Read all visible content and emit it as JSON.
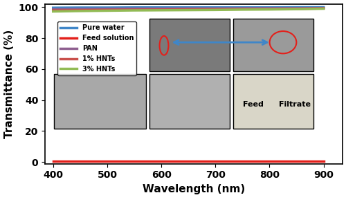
{
  "chart_data": {
    "type": "line",
    "x_label": "Wavelength (nm)",
    "y_label": "Transmittance (%)",
    "x": [
      400,
      450,
      500,
      550,
      600,
      650,
      700,
      750,
      800,
      850,
      900
    ],
    "series": [
      {
        "name": "Pure water",
        "color": "#3f86c8",
        "values": [
          99.6,
          99.7,
          99.7,
          99.8,
          99.8,
          99.8,
          99.8,
          99.8,
          99.8,
          99.9,
          99.9
        ]
      },
      {
        "name": "Feed solution",
        "color": "#e3201b",
        "values": [
          0.4,
          0.4,
          0.4,
          0.4,
          0.4,
          0.4,
          0.4,
          0.4,
          0.4,
          0.4,
          0.4
        ]
      },
      {
        "name": "PAN",
        "color": "#8e5f8f",
        "values": [
          98.6,
          98.8,
          98.9,
          99.0,
          99.0,
          99.1,
          99.1,
          99.2,
          99.2,
          99.3,
          99.4
        ]
      },
      {
        "name": "1% HNTs",
        "color": "#c9504b",
        "values": [
          97.8,
          98.0,
          98.2,
          98.3,
          98.4,
          98.5,
          98.6,
          98.7,
          98.8,
          98.9,
          99.2
        ]
      },
      {
        "name": "3% HNTs",
        "color": "#92bb55",
        "values": [
          97.2,
          97.5,
          97.7,
          97.9,
          98.0,
          98.1,
          98.2,
          98.4,
          98.5,
          98.7,
          99.0
        ]
      }
    ],
    "xlim": [
      385,
      935
    ],
    "xticks": [
      400,
      500,
      600,
      700,
      800,
      900
    ],
    "ylim": [
      -1,
      102
    ],
    "yticks": [
      0,
      20,
      40,
      60,
      80,
      100
    ],
    "legend": "upper left",
    "annotations": [
      "Feed",
      "Filtrate"
    ]
  }
}
